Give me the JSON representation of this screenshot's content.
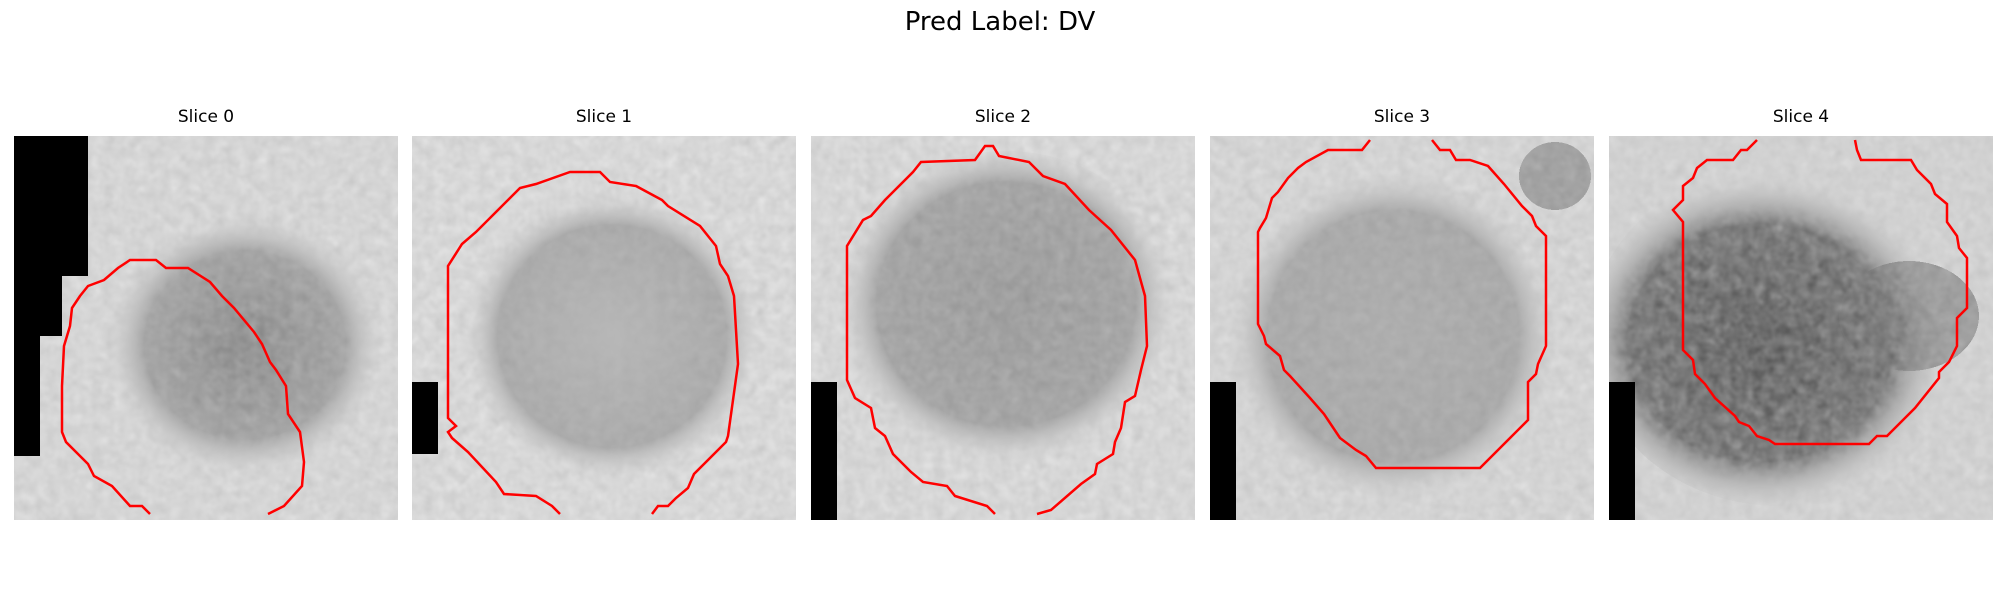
{
  "figure": {
    "title": "Pred Label: DV"
  },
  "slices": [
    {
      "title": "Slice 0"
    },
    {
      "title": "Slice 1"
    },
    {
      "title": "Slice 2"
    },
    {
      "title": "Slice 3"
    },
    {
      "title": "Slice 4"
    }
  ],
  "colors": {
    "contour": "#ff0000",
    "mask_block": "#000000",
    "background": "#ffffff"
  }
}
